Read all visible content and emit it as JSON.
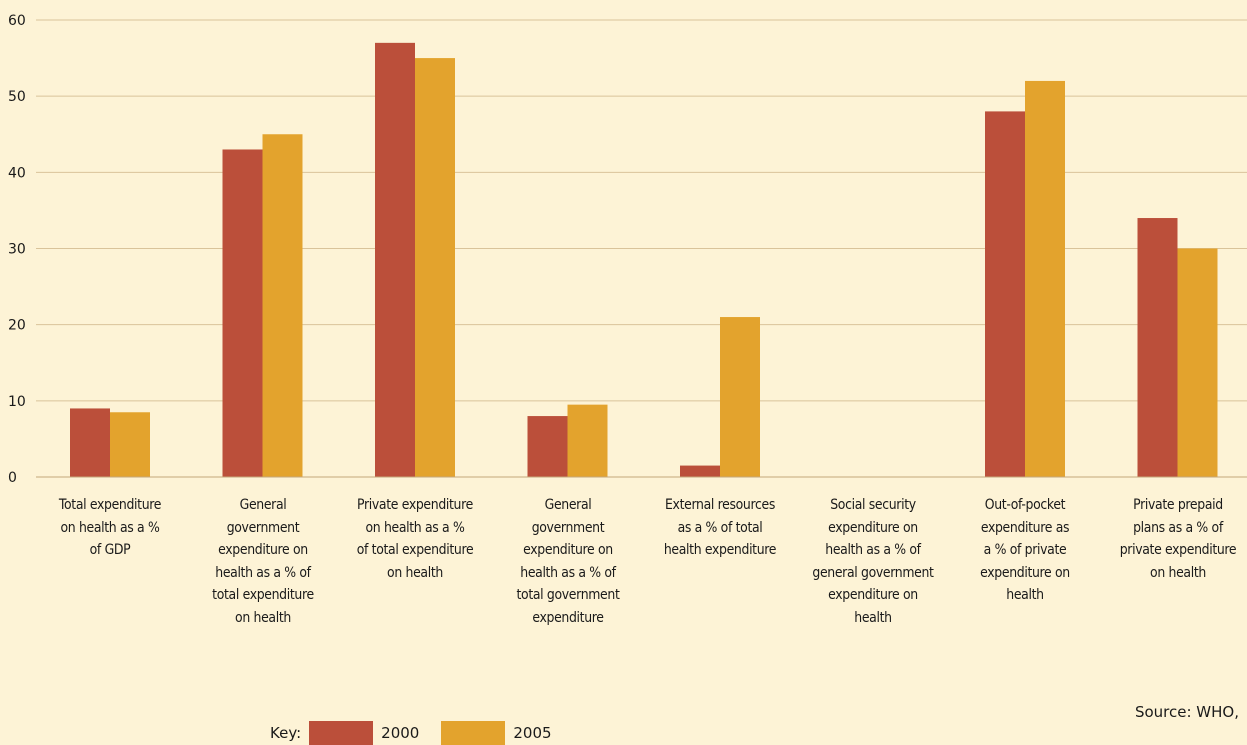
{
  "chart_data": {
    "type": "bar",
    "categories": [
      "Total expenditure\non health as a %\nof GDP",
      "General\ngovernment\nexpenditure on\nhealth as a % of\ntotal expenditure\non health",
      "Private expenditure\non health as a %\nof total expenditure\non health",
      "General\ngovernment\nexpenditure on\nhealth as a % of\ntotal government\nexpenditure",
      "External resources\nas a % of total\nhealth expenditure",
      "Social security\nexpenditure on\nhealth as a % of\ngeneral government\nexpenditure on\nhealth",
      "Out-of-pocket\nexpenditure as\na % of private\nexpenditure on\nhealth",
      "Private prepaid\nplans as a % of\nprivate expenditure\non health"
    ],
    "series": [
      {
        "name": "2000",
        "color": "#bb4f3a",
        "values": [
          9,
          43,
          57,
          8,
          1.5,
          0,
          48,
          34
        ]
      },
      {
        "name": "2005",
        "color": "#e3a32d",
        "values": [
          8.5,
          45,
          55,
          9.5,
          21,
          0,
          52,
          30
        ]
      }
    ],
    "ylim": [
      0,
      60
    ],
    "yticks": [
      0,
      10,
      20,
      30,
      40,
      50,
      60
    ],
    "grid": true,
    "legend_position": "bottom-left",
    "legend_label": "Key:",
    "source": "Source: WHO,"
  }
}
